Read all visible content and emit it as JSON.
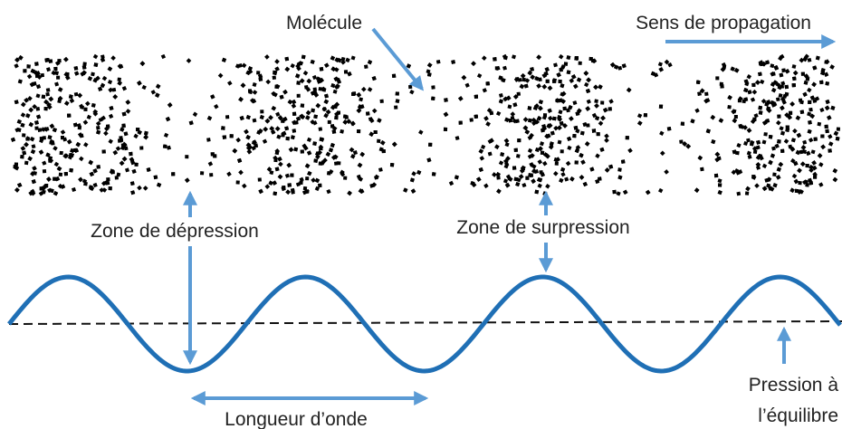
{
  "labels": {
    "molecule": "Molécule",
    "propagation": "Sens de propagation",
    "depression": "Zone de dépression",
    "surpression": "Zone de surpression",
    "wavelength": "Longueur d’onde",
    "equilibrium": [
      "Pression à",
      "l’équilibre"
    ]
  }
}
